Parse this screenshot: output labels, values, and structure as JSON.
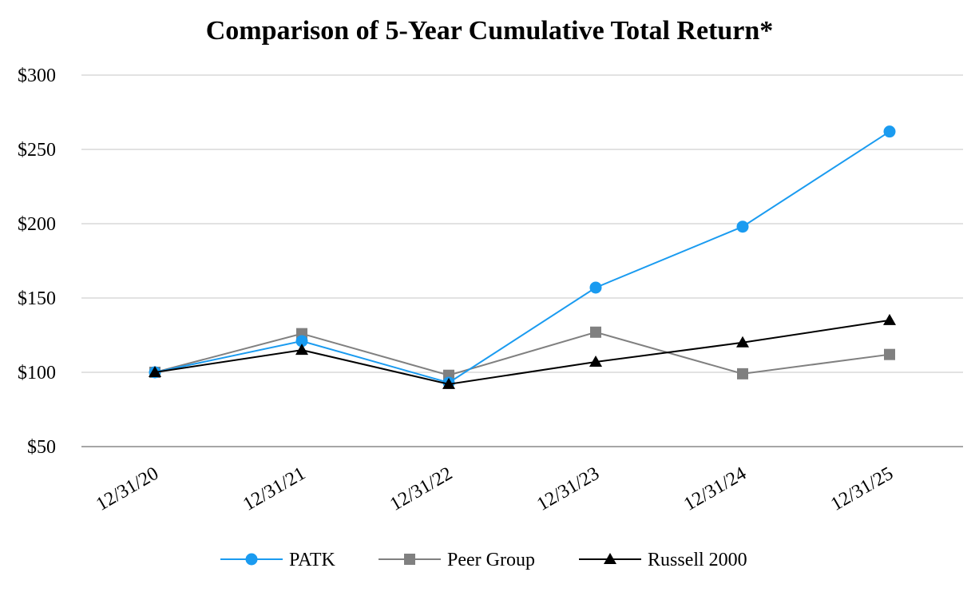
{
  "chart_data": {
    "type": "line",
    "title": "Comparison of 5-Year Cumulative Total Return*",
    "xlabel": "",
    "ylabel": "",
    "categories": [
      "12/31/20",
      "12/31/21",
      "12/31/22",
      "12/31/23",
      "12/31/24",
      "12/31/25"
    ],
    "yticks": [
      "$50",
      "$100",
      "$150",
      "$200",
      "$250",
      "$300"
    ],
    "ylim": [
      50,
      300
    ],
    "grid": true,
    "legend_position": "bottom",
    "series": [
      {
        "name": "PATK",
        "values": [
          100,
          121,
          93,
          157,
          198,
          262
        ],
        "color": "#1a9bf0",
        "marker": "circle"
      },
      {
        "name": "Peer Group",
        "values": [
          100,
          126,
          98,
          127,
          99,
          112
        ],
        "color": "#808080",
        "marker": "square"
      },
      {
        "name": "Russell 2000",
        "values": [
          100,
          115,
          92,
          107,
          120,
          135
        ],
        "color": "#000000",
        "marker": "triangle"
      }
    ]
  }
}
